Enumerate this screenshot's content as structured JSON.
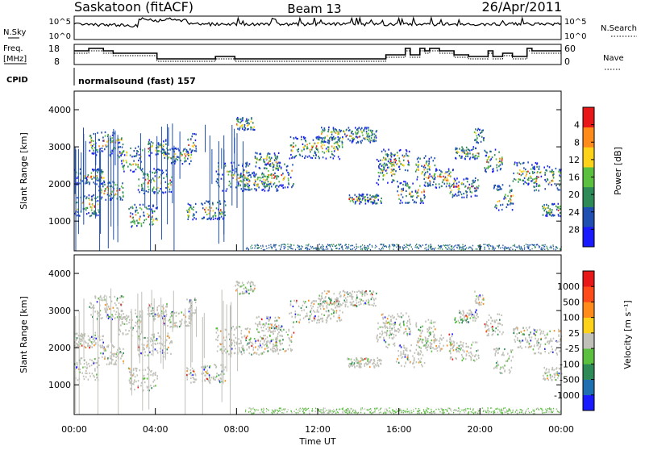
{
  "header": {
    "station": "Saskatoon (fitACF)",
    "beam": "Beam 13",
    "date": "26/Apr/2011"
  },
  "top_panels": {
    "nsky_label": "N.Sky",
    "nsky_ticks": [
      "10^5",
      "10^0"
    ],
    "nsearch_label": "N.Search",
    "nsearch_ticks": [
      "10^5",
      "10^0"
    ],
    "freq_label_1": "Freq.",
    "freq_label_2": "[MHz]",
    "freq_ticks": [
      "18",
      "8"
    ],
    "nave_label": "Nave",
    "nave_ticks": [
      "60",
      "0"
    ],
    "cpid_label": "CPID",
    "cpid_value": "normalsound (fast) 157"
  },
  "chart_data": [
    {
      "type": "heatmap",
      "name": "power",
      "ylabel": "Slant Range [km]",
      "yticks": [
        "1000",
        "2000",
        "3000",
        "4000"
      ],
      "ylim": [
        200,
        4500
      ],
      "colorbar_label": "Power [dB]",
      "colorbar_ticks": [
        "4",
        "8",
        "12",
        "16",
        "20",
        "24",
        "28"
      ],
      "colors": [
        "#1a1aff",
        "#1f4fb0",
        "#2e8b57",
        "#5bbf3f",
        "#ffd21a",
        "#ff8c1a",
        "#e81818"
      ]
    },
    {
      "type": "heatmap",
      "name": "velocity",
      "ylabel": "Slant Range [km]",
      "yticks": [
        "1000",
        "2000",
        "3000",
        "4000"
      ],
      "ylim": [
        200,
        4500
      ],
      "colorbar_label": "Velocity [m s⁻¹]",
      "colorbar_ticks": [
        "1000",
        "500",
        "100",
        "25",
        "-25",
        "-100",
        "-500",
        "-1000"
      ],
      "colors": [
        "#1a1aff",
        "#1f6fb0",
        "#2e8b57",
        "#5bbf3f",
        "#c0c0b8",
        "#ffd21a",
        "#ff8c1a",
        "#ff4a1a",
        "#e81818"
      ]
    }
  ],
  "xaxis": {
    "ticks": [
      "00:00",
      "04:00",
      "08:00",
      "12:00",
      "16:00",
      "20:00",
      "00:00"
    ],
    "label": "Time UT"
  }
}
